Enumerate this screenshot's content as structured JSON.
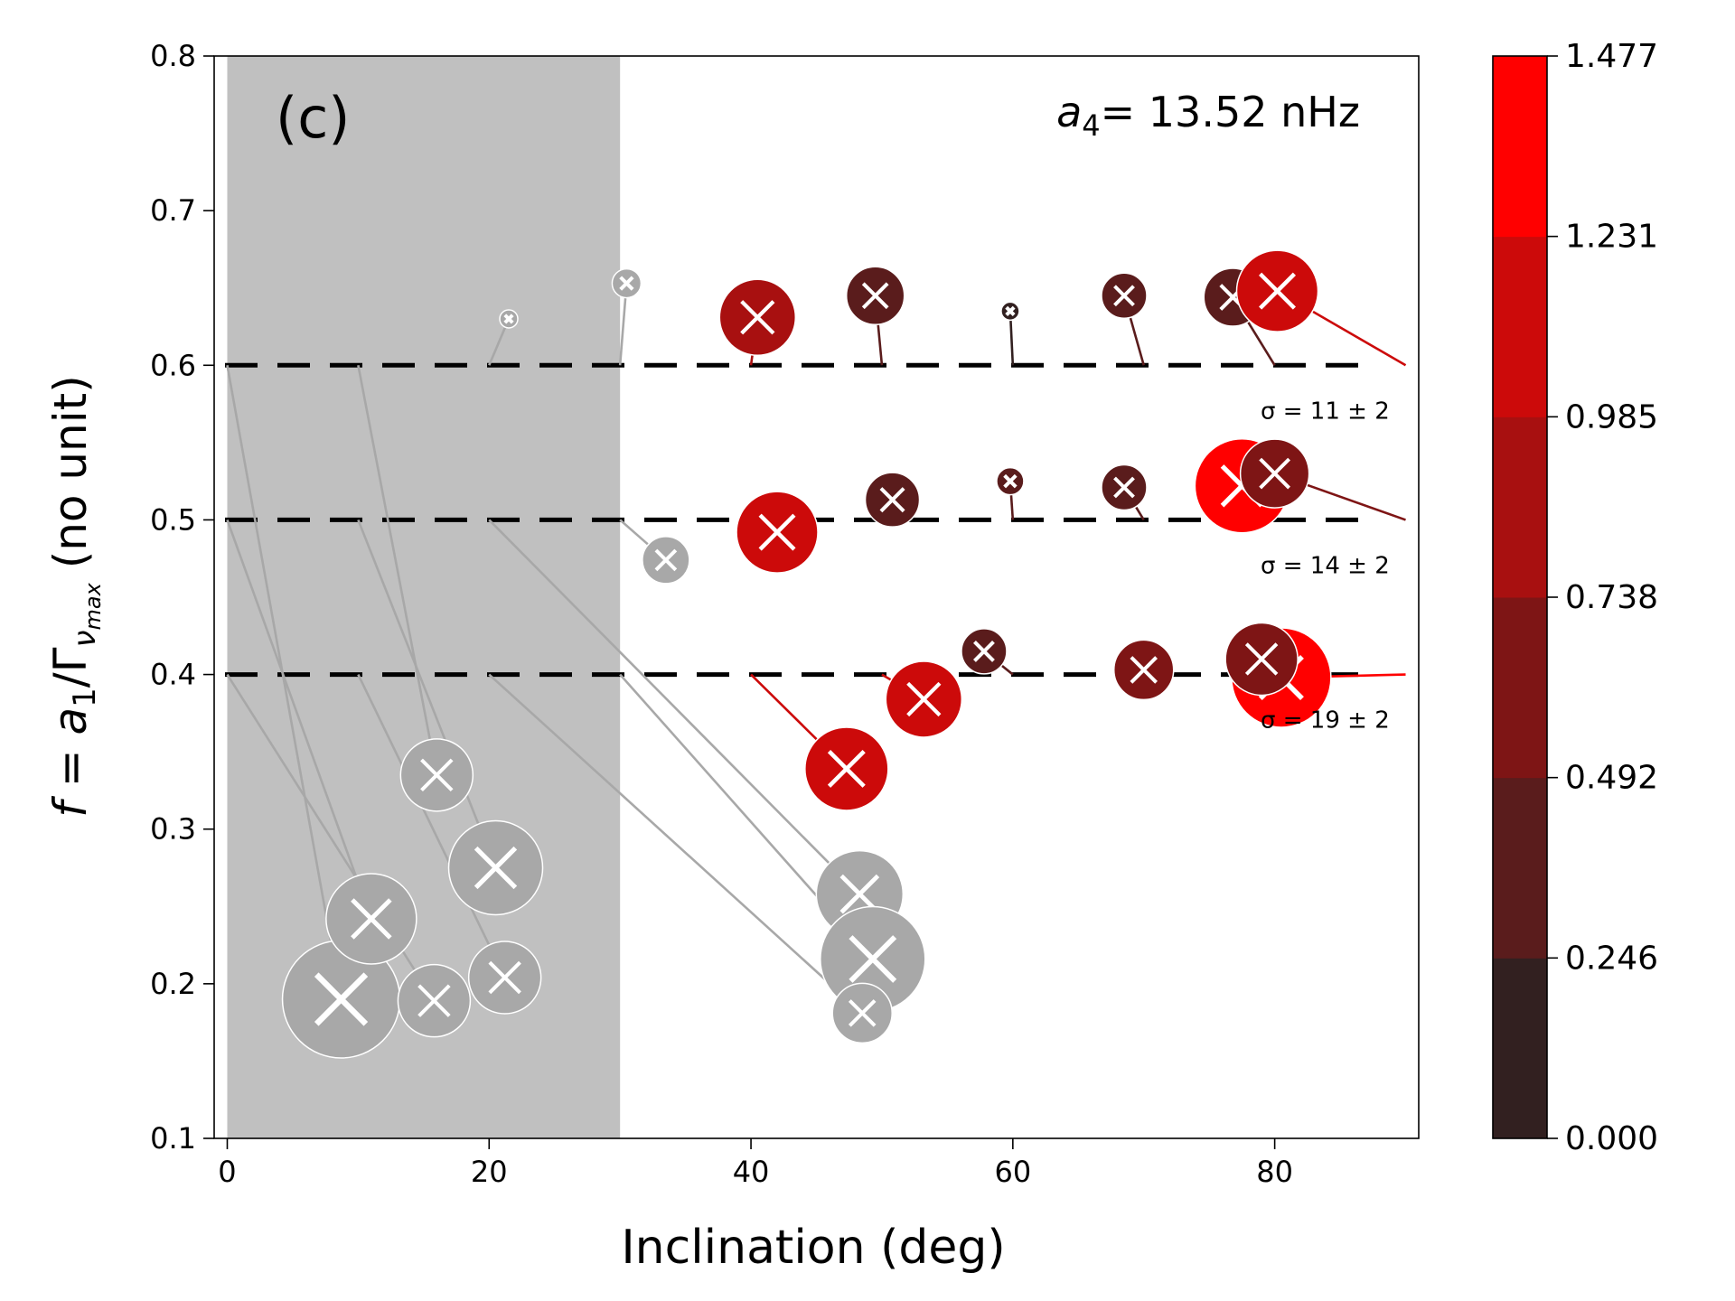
{
  "chart_data": {
    "type": "scatter",
    "panel_label": "(c)",
    "annotation": {
      "symbol": "a",
      "sub": "4",
      "text": "= 13.52 nHz"
    },
    "xlabel": "Inclination (deg)",
    "ylabel": {
      "f": "f",
      "eq": " = ",
      "a": "a",
      "a_sub": "1",
      "slash": "/Γ",
      "nu": "ν",
      "nu_sub": "max",
      "unit": "  (no unit)"
    },
    "xlim": [
      -1,
      91
    ],
    "ylim": [
      0.1,
      0.8
    ],
    "xticks": [
      0,
      20,
      40,
      60,
      80
    ],
    "yticks": [
      0.1,
      0.2,
      0.3,
      0.4,
      0.5,
      0.6,
      0.7,
      0.8
    ],
    "shaded_region": [
      0,
      30
    ],
    "reference_levels": [
      {
        "y": 0.6,
        "sigma_label": "σ = 11 ± 2"
      },
      {
        "y": 0.5,
        "sigma_label": "σ = 14 ± 2"
      },
      {
        "y": 0.4,
        "sigma_label": "σ = 19 ± 2"
      }
    ],
    "colorbar": {
      "ticks": [
        "0.000",
        "0.246",
        "0.492",
        "0.738",
        "0.985",
        "1.231",
        "1.477"
      ],
      "colors": [
        "#322020",
        "#5a1c1c",
        "#7e1515",
        "#a81010",
        "#cc0a0a",
        "#ff0000"
      ]
    },
    "points": [
      {
        "x": 21.5,
        "y": 0.63,
        "r": 0.1,
        "c": "gray",
        "from": [
          20,
          0.6
        ]
      },
      {
        "x": 30.5,
        "y": 0.653,
        "r": 0.16,
        "c": "gray",
        "from": [
          30,
          0.6
        ]
      },
      {
        "x": 40.5,
        "y": 0.631,
        "r": 0.42,
        "c": 0.85,
        "from": [
          40,
          0.6
        ]
      },
      {
        "x": 49.5,
        "y": 0.645,
        "r": 0.32,
        "c": 0.4,
        "from": [
          50,
          0.6
        ]
      },
      {
        "x": 59.8,
        "y": 0.635,
        "r": 0.1,
        "c": 0.2,
        "from": [
          60,
          0.6
        ]
      },
      {
        "x": 68.5,
        "y": 0.645,
        "r": 0.25,
        "c": 0.4,
        "from": [
          70,
          0.6
        ]
      },
      {
        "x": 76.8,
        "y": 0.644,
        "r": 0.32,
        "c": 0.25,
        "from": [
          80,
          0.6
        ]
      },
      {
        "x": 80.2,
        "y": 0.648,
        "r": 0.45,
        "c": 1.1,
        "from": [
          90,
          0.6
        ]
      },
      {
        "x": 33.5,
        "y": 0.474,
        "r": 0.26,
        "c": "gray",
        "from": [
          30,
          0.5
        ]
      },
      {
        "x": 42.0,
        "y": 0.492,
        "r": 0.45,
        "c": 1.1,
        "from": [
          40,
          0.5
        ]
      },
      {
        "x": 50.8,
        "y": 0.513,
        "r": 0.3,
        "c": 0.4,
        "from": [
          50,
          0.5
        ]
      },
      {
        "x": 59.8,
        "y": 0.525,
        "r": 0.15,
        "c": 0.35,
        "from": [
          60,
          0.5
        ]
      },
      {
        "x": 68.5,
        "y": 0.521,
        "r": 0.25,
        "c": 0.4,
        "from": [
          70,
          0.5
        ]
      },
      {
        "x": 77.5,
        "y": 0.522,
        "r": 0.52,
        "c": 1.47,
        "from": [
          80,
          0.5
        ]
      },
      {
        "x": 80.0,
        "y": 0.53,
        "r": 0.38,
        "c": 0.5,
        "from": [
          90,
          0.5
        ]
      },
      {
        "x": 47.3,
        "y": 0.339,
        "r": 0.46,
        "c": 1.1,
        "from": [
          40,
          0.4
        ]
      },
      {
        "x": 53.2,
        "y": 0.384,
        "r": 0.42,
        "c": 1.05,
        "from": [
          50,
          0.4
        ]
      },
      {
        "x": 57.8,
        "y": 0.415,
        "r": 0.25,
        "c": 0.3,
        "from": [
          60,
          0.4
        ]
      },
      {
        "x": 70.0,
        "y": 0.403,
        "r": 0.33,
        "c": 0.6,
        "from": [
          70,
          0.4
        ]
      },
      {
        "x": 80.5,
        "y": 0.398,
        "r": 0.55,
        "c": 1.47,
        "from": [
          90,
          0.4
        ]
      },
      {
        "x": 79.0,
        "y": 0.41,
        "r": 0.4,
        "c": 0.6,
        "from": [
          80,
          0.4
        ]
      },
      {
        "x": 8.7,
        "y": 0.19,
        "r": 0.65,
        "c": "gray",
        "from": [
          0,
          0.6
        ]
      },
      {
        "x": 11.0,
        "y": 0.242,
        "r": 0.5,
        "c": "gray",
        "from": [
          0,
          0.5
        ]
      },
      {
        "x": 15.8,
        "y": 0.189,
        "r": 0.4,
        "c": "gray",
        "from": [
          0,
          0.4
        ]
      },
      {
        "x": 16.0,
        "y": 0.335,
        "r": 0.4,
        "c": "gray",
        "from": [
          10,
          0.6
        ]
      },
      {
        "x": 20.5,
        "y": 0.275,
        "r": 0.52,
        "c": "gray",
        "from": [
          10,
          0.5
        ]
      },
      {
        "x": 21.2,
        "y": 0.204,
        "r": 0.4,
        "c": "gray",
        "from": [
          10,
          0.4
        ]
      },
      {
        "x": 48.3,
        "y": 0.258,
        "r": 0.48,
        "c": "gray",
        "from": [
          20,
          0.5
        ]
      },
      {
        "x": 49.3,
        "y": 0.216,
        "r": 0.58,
        "c": "gray",
        "from": [
          30,
          0.4
        ]
      },
      {
        "x": 48.5,
        "y": 0.181,
        "r": 0.33,
        "c": "gray",
        "from": [
          20,
          0.4
        ]
      }
    ]
  }
}
